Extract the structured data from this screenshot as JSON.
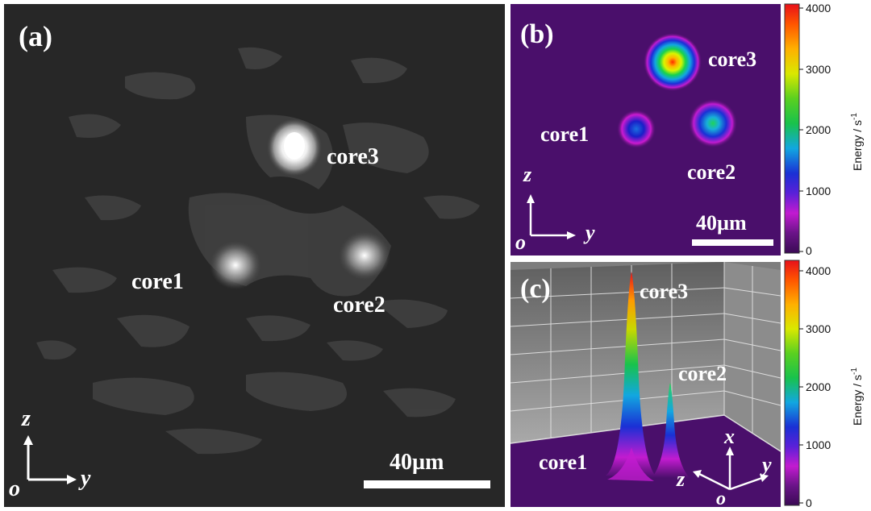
{
  "panel_a": {
    "label": "(a)",
    "cores": [
      "core3",
      "core1",
      "core2"
    ],
    "axes": {
      "vertical": "z",
      "horizontal": "y",
      "origin": "o"
    },
    "scalebar": "40µm"
  },
  "panel_b": {
    "label": "(b)",
    "cores": [
      "core3",
      "core1",
      "core2"
    ],
    "axes": {
      "vertical": "z",
      "horizontal": "y",
      "origin": "o"
    },
    "scalebar": "40µm"
  },
  "panel_c": {
    "label": "(c)",
    "cores": [
      "core3",
      "core2",
      "core1"
    ],
    "axes": {
      "vertical": "x",
      "right": "y",
      "left": "z",
      "origin": "o"
    }
  },
  "colorbar": {
    "title": "Energy / s",
    "title_sup": "-1",
    "ticks": [
      "4000",
      "3000",
      "2000",
      "1000",
      "0"
    ]
  },
  "colors": {
    "panel_a_bg": "#272727",
    "heatmap_bg": "#4a0f6b"
  }
}
